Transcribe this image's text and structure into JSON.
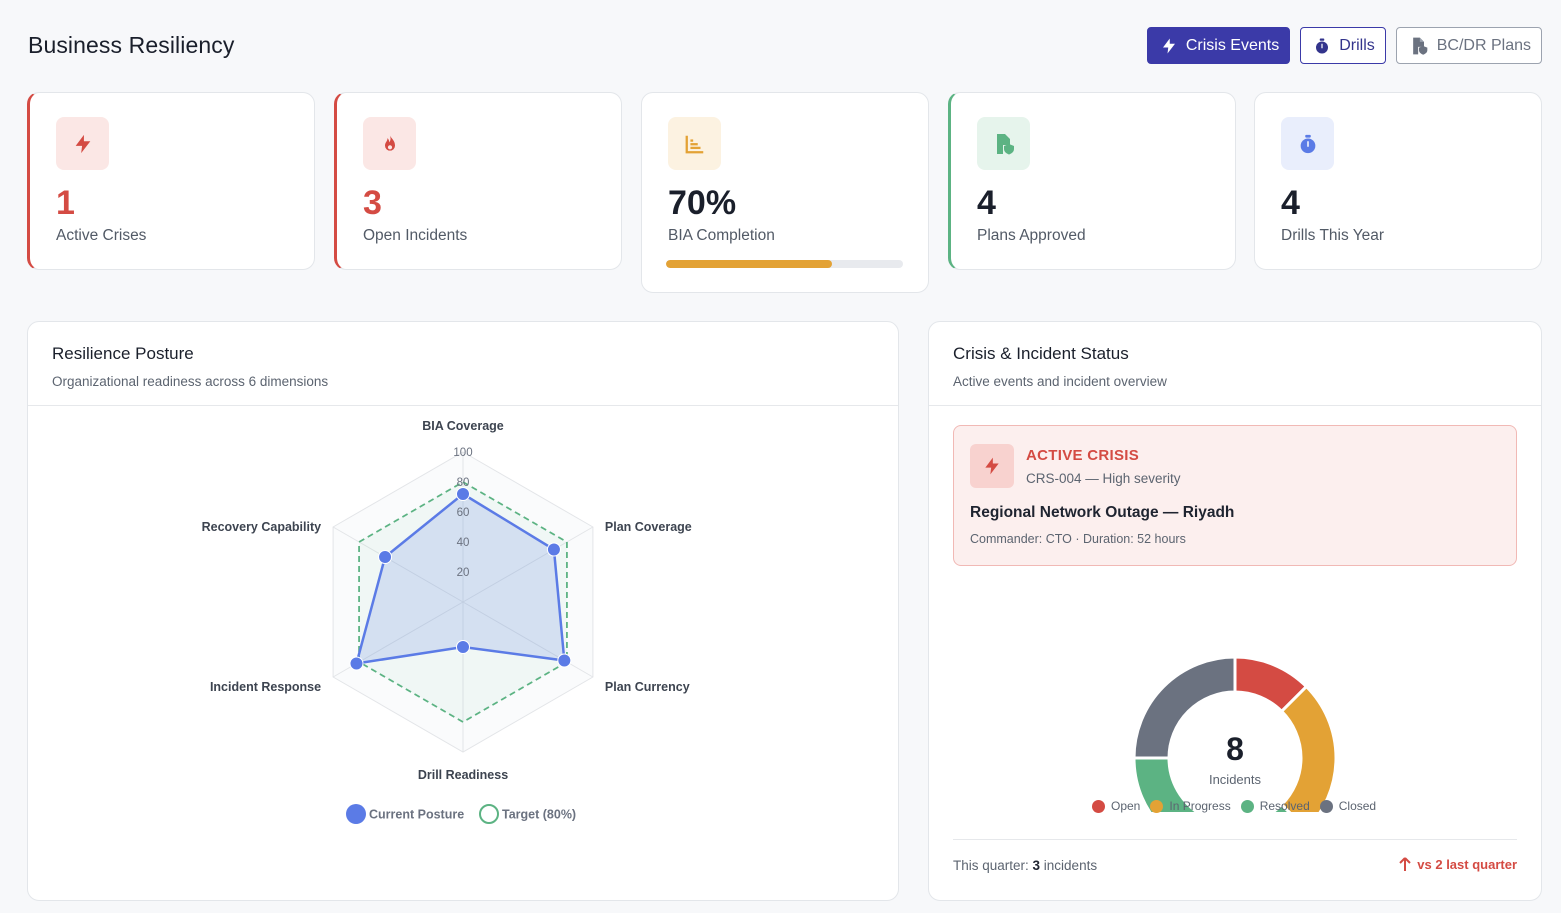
{
  "page": {
    "title": "Business Resiliency"
  },
  "actions": {
    "crisis_events": "Crisis Events",
    "drills": "Drills",
    "plans": "BC/DR Plans"
  },
  "kpis": [
    {
      "value": "1",
      "label": "Active Crises",
      "icon": "lightning-icon",
      "color": "#d44b43"
    },
    {
      "value": "3",
      "label": "Open Incidents",
      "icon": "fire-icon",
      "color": "#d44b43"
    },
    {
      "value": "70%",
      "label": "BIA Completion",
      "icon": "chart-bars-icon",
      "color": "#e3a235",
      "progress": 0.7
    },
    {
      "value": "4",
      "label": "Plans Approved",
      "icon": "file-shield-icon",
      "color": "#5cb383"
    },
    {
      "value": "4",
      "label": "Drills This Year",
      "icon": "stopwatch-icon",
      "color": "#5b7be6"
    }
  ],
  "posture": {
    "title": "Resilience Posture",
    "subtitle": "Organizational readiness across 6 dimensions",
    "legend_current": "Current Posture",
    "legend_target": "Target (80%)"
  },
  "status": {
    "title": "Crisis & Incident Status",
    "subtitle": "Active events and incident overview",
    "crisis": {
      "kicker": "ACTIVE CRISIS",
      "sub": "CRS-004 — High severity",
      "title": "Regional Network Outage — Riyadh",
      "meta": "Commander: CTO · Duration: 52 hours"
    },
    "footer_prefix": "This quarter: ",
    "footer_count": "3",
    "footer_suffix": " incidents",
    "trend": "vs 2 last quarter"
  },
  "chart_data": [
    {
      "type": "radar",
      "axes": [
        "BIA Coverage",
        "Plan Coverage",
        "Plan Currency",
        "Drill Readiness",
        "Incident Response",
        "Recovery Capability"
      ],
      "rlim": [
        0,
        100
      ],
      "ticks": [
        "20",
        "40",
        "60",
        "80",
        "100"
      ],
      "series": [
        {
          "name": "Current Posture",
          "values": [
            72,
            70,
            78,
            30,
            82,
            60
          ],
          "color": "#5b7be6"
        },
        {
          "name": "Target (80%)",
          "values": [
            80,
            80,
            80,
            80,
            80,
            80
          ],
          "color": "#5cb383"
        }
      ],
      "legend": "bottom"
    },
    {
      "type": "pie",
      "center_value": "8",
      "center_label": "Incidents",
      "categories": [
        "Open",
        "In Progress",
        "Resolved",
        "Closed"
      ],
      "values": [
        1,
        2,
        3,
        2
      ],
      "colors": [
        "#d44b43",
        "#e3a235",
        "#5cb383",
        "#6b7280"
      ],
      "legend": "bottom"
    }
  ]
}
